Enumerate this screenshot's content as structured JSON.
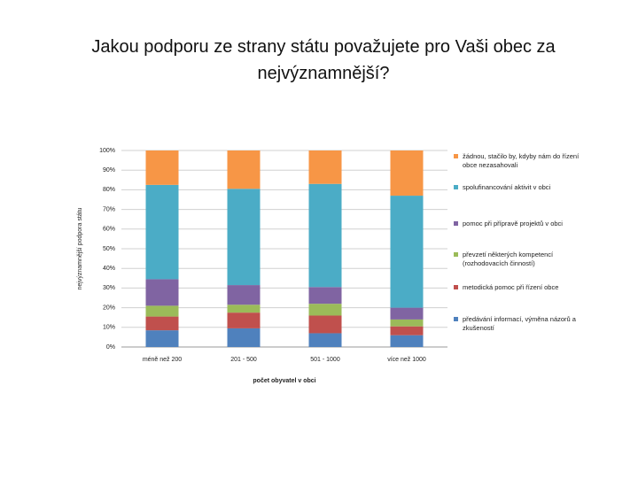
{
  "chart_data": {
    "type": "stacked_bar_100",
    "title": "Jakou podporu ze strany státu považujete pro Vaši obec za nejvýznamnější?",
    "x_label": "počet obyvatel v obci",
    "y_label": "nejvýznamnější podpora státu",
    "categories": [
      "méně než 200",
      "201 - 500",
      "501 - 1000",
      "více než 1000"
    ],
    "series": [
      {
        "name": "předávání informací, výměna názorů a zkušeností",
        "color": "#4f81bd",
        "values": [
          8.5,
          9.5,
          7,
          6
        ]
      },
      {
        "name": "metodická pomoc při řízení obce",
        "color": "#c0504d",
        "values": [
          7,
          8,
          9,
          4.5
        ]
      },
      {
        "name": "převzetí některých kompetencí (rozhodovacích činností)",
        "color": "#9bbb59",
        "values": [
          5.5,
          4,
          6,
          3.5
        ]
      },
      {
        "name": "pomoc při přípravě projektů v obci",
        "color": "#8064a2",
        "values": [
          13.5,
          10,
          8.5,
          6
        ]
      },
      {
        "name": "spolufinancování aktivit v obci",
        "color": "#4bacc6",
        "values": [
          48,
          49,
          52.5,
          57
        ]
      },
      {
        "name": "žádnou, stačilo by, kdyby nám do řízení obce nezasahovali",
        "color": "#f79646",
        "values": [
          17.5,
          19.5,
          17,
          23
        ]
      }
    ],
    "ylim": [
      0,
      100
    ],
    "yticks": [
      {
        "value": 0,
        "label": "0%"
      },
      {
        "value": 10,
        "label": "10%"
      },
      {
        "value": 20,
        "label": "20%"
      },
      {
        "value": 30,
        "label": "30%"
      },
      {
        "value": 40,
        "label": "40%"
      },
      {
        "value": 50,
        "label": "50%"
      },
      {
        "value": 60,
        "label": "60%"
      },
      {
        "value": 70,
        "label": "70%"
      },
      {
        "value": 80,
        "label": "80%"
      },
      {
        "value": 90,
        "label": "90%"
      },
      {
        "value": 100,
        "label": "100%"
      }
    ],
    "grid": true,
    "legend": "right"
  }
}
